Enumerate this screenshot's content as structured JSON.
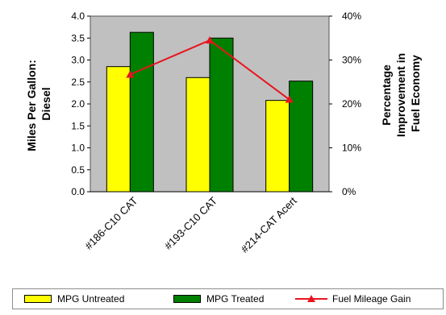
{
  "chart_data": {
    "type": "bar",
    "categories": [
      "#186-C10 CAT",
      "#193-C10 CAT",
      "#214-CAT Acert"
    ],
    "series": [
      {
        "name": "MPG Untreated",
        "axis": "left",
        "kind": "bar",
        "color": "#ffff00",
        "values": [
          2.85,
          2.6,
          2.08
        ]
      },
      {
        "name": "MPG Treated",
        "axis": "left",
        "kind": "bar",
        "color": "#008000",
        "values": [
          3.63,
          3.5,
          2.52
        ]
      },
      {
        "name": "Fuel Mileage Gain",
        "axis": "right",
        "kind": "line",
        "color": "#e8141e",
        "values": [
          26.7,
          34.5,
          21.0
        ]
      }
    ],
    "ylabel": "Miles Per Gallon: Diesel",
    "y2label": "Percentage Improvement in Fuel Economy",
    "ylim": [
      0,
      4.0
    ],
    "y2lim": [
      0,
      40
    ],
    "yticks": [
      "0.0",
      "0.5",
      "1.0",
      "1.5",
      "2.0",
      "2.5",
      "3.0",
      "3.5",
      "4.0"
    ],
    "y2ticks": [
      "0%",
      "10%",
      "20%",
      "30%",
      "40%"
    ],
    "plot_background": "#c0c0c0",
    "grid": false,
    "legend": {
      "position": "bottom",
      "entries": [
        "MPG Untreated",
        "MPG Treated",
        "Fuel Mileage Gain"
      ]
    }
  }
}
